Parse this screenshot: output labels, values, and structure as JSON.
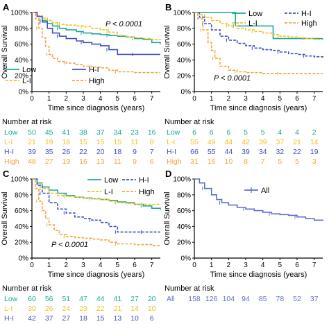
{
  "colors": {
    "Low": "#1aa99b",
    "L-I": "#f2c01e",
    "H-I": "#3f51c2",
    "High": "#f5a340",
    "All": "#5c6fc9",
    "axis": "#000000"
  },
  "common": {
    "xlabel": "Time since diagnosis (years)",
    "ylabel": "Overall Survival",
    "risk_title": "Number at risk",
    "xticks": [
      0,
      1,
      2,
      3,
      4,
      5,
      6,
      7
    ],
    "yticks": [
      "0%",
      "20%",
      "40%",
      "60%",
      "80%",
      "100%"
    ]
  },
  "chart_data": [
    {
      "panel": "A",
      "type": "line",
      "annotation": "P < 0.0001",
      "legend_position": "bottom-left",
      "xlabel": "Time since diagnosis (years)",
      "ylabel": "Overall Survival",
      "xlim": [
        0,
        7.5
      ],
      "ylim": [
        0,
        100
      ],
      "series": [
        {
          "name": "Low",
          "x": [
            0,
            0.3,
            0.6,
            0.9,
            1.2,
            1.6,
            2,
            2.6,
            3,
            3.5,
            4,
            4.5,
            5,
            5.5,
            6,
            6.5,
            7,
            7.5
          ],
          "y": [
            100,
            95,
            90,
            86,
            83,
            80,
            78,
            76,
            74,
            73,
            72,
            71,
            70,
            69,
            67,
            66,
            62,
            60
          ]
        },
        {
          "name": "L-I",
          "x": [
            0,
            0.3,
            0.6,
            0.9,
            1.2,
            1.6,
            2,
            2.6,
            3,
            3.5,
            4,
            4.5,
            5,
            5.5,
            6,
            6.5,
            7,
            7.5
          ],
          "y": [
            100,
            96,
            93,
            90,
            87,
            85,
            84,
            83,
            82,
            80,
            78,
            75,
            71,
            69,
            68,
            67,
            66,
            65
          ]
        },
        {
          "name": "H-I",
          "x": [
            0,
            0.3,
            0.6,
            0.9,
            1.2,
            1.6,
            2,
            2.6,
            3,
            3.5,
            4,
            4.5,
            5,
            5.5,
            6,
            6.5,
            7,
            7.5
          ],
          "y": [
            100,
            95,
            88,
            80,
            74,
            70,
            67,
            64,
            62,
            60,
            58,
            53,
            47,
            47,
            47,
            47,
            47,
            47
          ]
        },
        {
          "name": "High",
          "x": [
            0,
            0.2,
            0.4,
            0.6,
            0.8,
            1,
            1.2,
            1.5,
            2,
            2.5,
            3,
            3.5,
            4,
            4.5,
            5,
            6,
            7,
            7.5
          ],
          "y": [
            100,
            92,
            80,
            68,
            57,
            47,
            42,
            38,
            36,
            34,
            32,
            31,
            30,
            27,
            25,
            24,
            24,
            24
          ]
        }
      ],
      "risk_table": [
        {
          "group": "Low",
          "values": [
            50,
            45,
            41,
            38,
            37,
            34,
            23,
            16
          ]
        },
        {
          "group": "L-I",
          "values": [
            21,
            19,
            18,
            15,
            15,
            15,
            11,
            8
          ]
        },
        {
          "group": "H-I",
          "values": [
            39,
            35,
            26,
            22,
            20,
            18,
            9,
            7
          ]
        },
        {
          "group": "High",
          "values": [
            48,
            27,
            19,
            16,
            13,
            11,
            9,
            6
          ]
        }
      ]
    },
    {
      "panel": "B",
      "type": "line",
      "annotation": "P < 0.0001",
      "legend_position": "top-right",
      "xlabel": "Time since diagnosis (years)",
      "ylabel": "Overall Survival",
      "xlim": [
        0,
        7.5
      ],
      "ylim": [
        0,
        100
      ],
      "series": [
        {
          "name": "Low",
          "x": [
            0,
            2.4,
            2.4,
            4.6,
            4.6,
            7.5
          ],
          "y": [
            100,
            100,
            83,
            83,
            67,
            67
          ]
        },
        {
          "name": "L-I",
          "x": [
            0,
            0.3,
            0.6,
            1,
            1.5,
            2,
            2.5,
            3,
            3.5,
            4,
            4.5,
            5,
            5.5,
            6,
            6.5,
            7,
            7.5
          ],
          "y": [
            100,
            97,
            94,
            90,
            86,
            83,
            80,
            78,
            76,
            74,
            72,
            70,
            69,
            68,
            67,
            66,
            65
          ]
        },
        {
          "name": "H-I",
          "x": [
            0,
            0.3,
            0.6,
            1,
            1.5,
            2,
            2.5,
            3,
            3.5,
            4,
            4.5,
            5,
            5.5,
            6,
            6.5,
            7,
            7.5
          ],
          "y": [
            100,
            94,
            86,
            78,
            70,
            65,
            61,
            58,
            55,
            53,
            52,
            50,
            48,
            47,
            45,
            44,
            43
          ]
        },
        {
          "name": "High",
          "x": [
            0,
            0.2,
            0.5,
            0.8,
            1,
            1.2,
            1.5,
            2,
            2.5,
            3,
            4,
            5,
            6,
            7,
            7.5
          ],
          "y": [
            100,
            92,
            78,
            62,
            52,
            42,
            32,
            27,
            25,
            24,
            23,
            23,
            23,
            23,
            23
          ]
        }
      ],
      "risk_table": [
        {
          "group": "Low",
          "values": [
            6,
            6,
            6,
            5,
            5,
            4,
            4,
            2
          ]
        },
        {
          "group": "L-I",
          "values": [
            55,
            49,
            44,
            42,
            39,
            37,
            21,
            14
          ]
        },
        {
          "group": "H-I",
          "values": [
            66,
            55,
            44,
            39,
            34,
            32,
            22,
            19
          ]
        },
        {
          "group": "High",
          "values": [
            31,
            16,
            10,
            8,
            7,
            5,
            5,
            3
          ]
        }
      ]
    },
    {
      "panel": "C",
      "type": "line",
      "annotation": "P < 0.0001",
      "legend_position": "top-right",
      "xlabel": "Time since diagnosis (years)",
      "ylabel": "Overall Survival",
      "xlim": [
        0,
        7.5
      ],
      "ylim": [
        0,
        100
      ],
      "series": [
        {
          "name": "Low",
          "x": [
            0,
            0.3,
            0.6,
            1,
            1.5,
            2,
            2.5,
            3,
            3.5,
            4,
            4.5,
            5,
            5.5,
            6,
            6.5,
            7,
            7.5
          ],
          "y": [
            100,
            95,
            90,
            86,
            82,
            79,
            77,
            76,
            75,
            74,
            73,
            71,
            70,
            68,
            66,
            63,
            61
          ]
        },
        {
          "name": "L-I",
          "x": [
            0,
            0.3,
            0.6,
            1,
            1.5,
            2,
            2.5,
            3,
            3.5,
            4,
            4.5,
            5,
            5.5,
            6,
            6.5,
            7,
            7.5
          ],
          "y": [
            100,
            94,
            88,
            82,
            79,
            78,
            77,
            76,
            75,
            74,
            72,
            70,
            69,
            68,
            68,
            68,
            68
          ]
        },
        {
          "name": "H-I",
          "x": [
            0,
            0.3,
            0.6,
            1,
            1.5,
            2,
            2.5,
            3,
            3.5,
            4,
            4.5,
            5,
            5.5,
            6,
            6.5,
            7,
            7.5
          ],
          "y": [
            100,
            92,
            82,
            70,
            62,
            57,
            52,
            50,
            48,
            45,
            40,
            33,
            33,
            33,
            33,
            33,
            33
          ]
        },
        {
          "name": "High",
          "x": [
            0,
            0.2,
            0.4,
            0.6,
            0.8,
            1,
            1.3,
            1.6,
            2,
            2.5,
            3,
            3.5,
            4,
            4.5,
            5,
            6,
            7,
            7.5
          ],
          "y": [
            100,
            88,
            72,
            60,
            50,
            42,
            35,
            30,
            27,
            26,
            25,
            24,
            23,
            20,
            18,
            17,
            16,
            16
          ]
        }
      ],
      "risk_table": [
        {
          "group": "Low",
          "values": [
            60,
            56,
            51,
            47,
            44,
            41,
            27,
            20
          ]
        },
        {
          "group": "L-I",
          "values": [
            30,
            26,
            24,
            23,
            22,
            21,
            14,
            10
          ]
        },
        {
          "group": "H-I",
          "values": [
            42,
            37,
            27,
            18,
            15,
            13,
            10,
            6
          ]
        },
        {
          "group": "High",
          "values": [
            36,
            17,
            11,
            9,
            6,
            5,
            4,
            1
          ]
        }
      ]
    },
    {
      "panel": "D",
      "type": "line",
      "annotation": "",
      "legend_position": "top-center",
      "xlabel": "Time since diagnosis (years)",
      "ylabel": "Overall Survival",
      "xlim": [
        0,
        7.5
      ],
      "ylim": [
        0,
        100
      ],
      "series": [
        {
          "name": "All",
          "x": [
            0,
            0.3,
            0.6,
            1,
            1.3,
            1.6,
            2,
            2.5,
            3,
            3.5,
            4,
            4.5,
            5,
            5.5,
            6,
            6.5,
            7,
            7.5
          ],
          "y": [
            100,
            95,
            88,
            80,
            74,
            70,
            67,
            64,
            62,
            60,
            58,
            56,
            55,
            54,
            52,
            50,
            48,
            47
          ]
        }
      ],
      "risk_table": [
        {
          "group": "All",
          "values": [
            158,
            126,
            104,
            94,
            85,
            78,
            52,
            37
          ]
        }
      ]
    }
  ]
}
